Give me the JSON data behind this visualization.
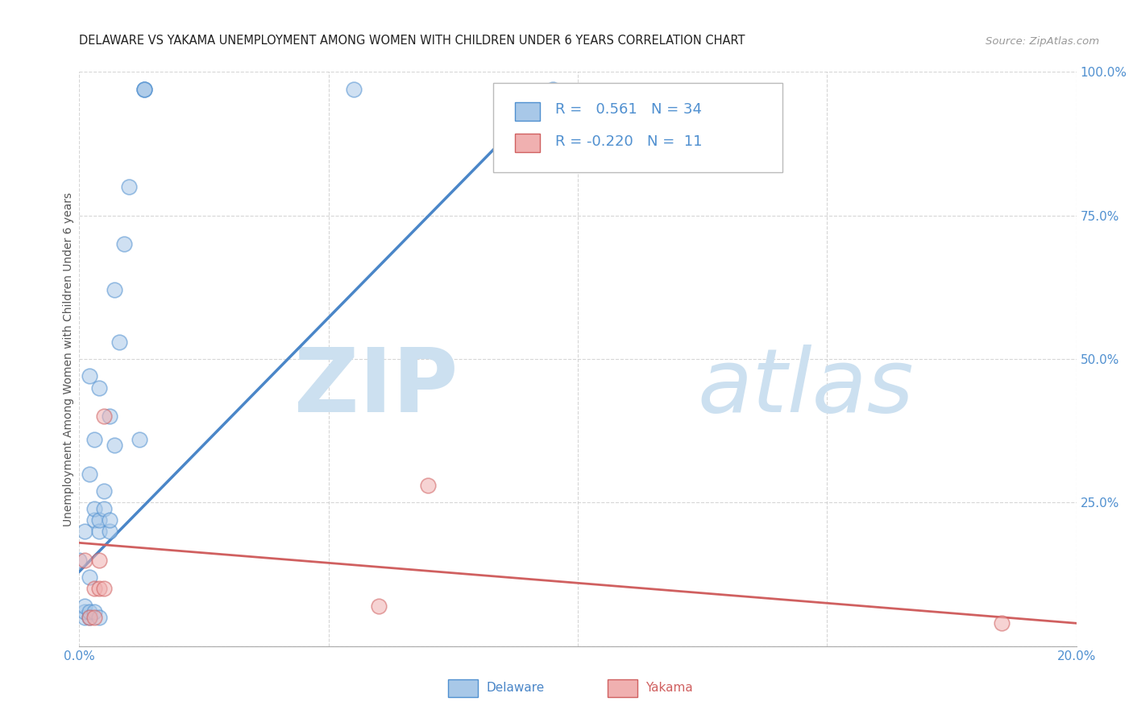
{
  "title": "DELAWARE VS YAKAMA UNEMPLOYMENT AMONG WOMEN WITH CHILDREN UNDER 6 YEARS CORRELATION CHART",
  "source": "Source: ZipAtlas.com",
  "ylabel": "Unemployment Among Women with Children Under 6 years",
  "xlim": [
    0.0,
    0.2
  ],
  "ylim": [
    0.0,
    1.0
  ],
  "xticks": [
    0.0,
    0.05,
    0.1,
    0.15,
    0.2
  ],
  "yticks": [
    0.0,
    0.25,
    0.5,
    0.75,
    1.0
  ],
  "delaware_R": 0.561,
  "delaware_N": 34,
  "yakama_R": -0.22,
  "yakama_N": 11,
  "delaware_color": "#a8c8e8",
  "yakama_color": "#f0b0b0",
  "delaware_edge_color": "#5090d0",
  "yakama_edge_color": "#d06060",
  "delaware_line_color": "#4a86c8",
  "yakama_line_color": "#d06060",
  "grid_color": "#cccccc",
  "watermark_zip_color": "#cce0f0",
  "watermark_atlas_color": "#cce0f0",
  "title_color": "#222222",
  "axis_label_color": "#555555",
  "tick_label_color": "#5090d0",
  "delaware_x": [
    0.0,
    0.001,
    0.001,
    0.001,
    0.001,
    0.002,
    0.002,
    0.002,
    0.002,
    0.002,
    0.003,
    0.003,
    0.003,
    0.003,
    0.004,
    0.004,
    0.004,
    0.004,
    0.005,
    0.005,
    0.006,
    0.006,
    0.006,
    0.007,
    0.007,
    0.008,
    0.009,
    0.01,
    0.012,
    0.013,
    0.013,
    0.013,
    0.055,
    0.095
  ],
  "delaware_y": [
    0.15,
    0.05,
    0.06,
    0.07,
    0.2,
    0.05,
    0.06,
    0.12,
    0.3,
    0.47,
    0.06,
    0.22,
    0.24,
    0.36,
    0.05,
    0.2,
    0.22,
    0.45,
    0.24,
    0.27,
    0.2,
    0.22,
    0.4,
    0.35,
    0.62,
    0.53,
    0.7,
    0.8,
    0.36,
    0.97,
    0.97,
    0.97,
    0.97,
    0.97
  ],
  "yakama_x": [
    0.001,
    0.002,
    0.003,
    0.003,
    0.004,
    0.004,
    0.005,
    0.005,
    0.06,
    0.07,
    0.185
  ],
  "yakama_y": [
    0.15,
    0.05,
    0.05,
    0.1,
    0.1,
    0.15,
    0.1,
    0.4,
    0.07,
    0.28,
    0.04
  ],
  "delaware_trendline_x": [
    0.0,
    0.095
  ],
  "delaware_trendline_y": [
    0.13,
    0.97
  ],
  "yakama_trendline_x": [
    0.0,
    0.2
  ],
  "yakama_trendline_y": [
    0.18,
    0.04
  ],
  "marker_size": 180,
  "marker_alpha": 0.55,
  "line_width": 2.0
}
